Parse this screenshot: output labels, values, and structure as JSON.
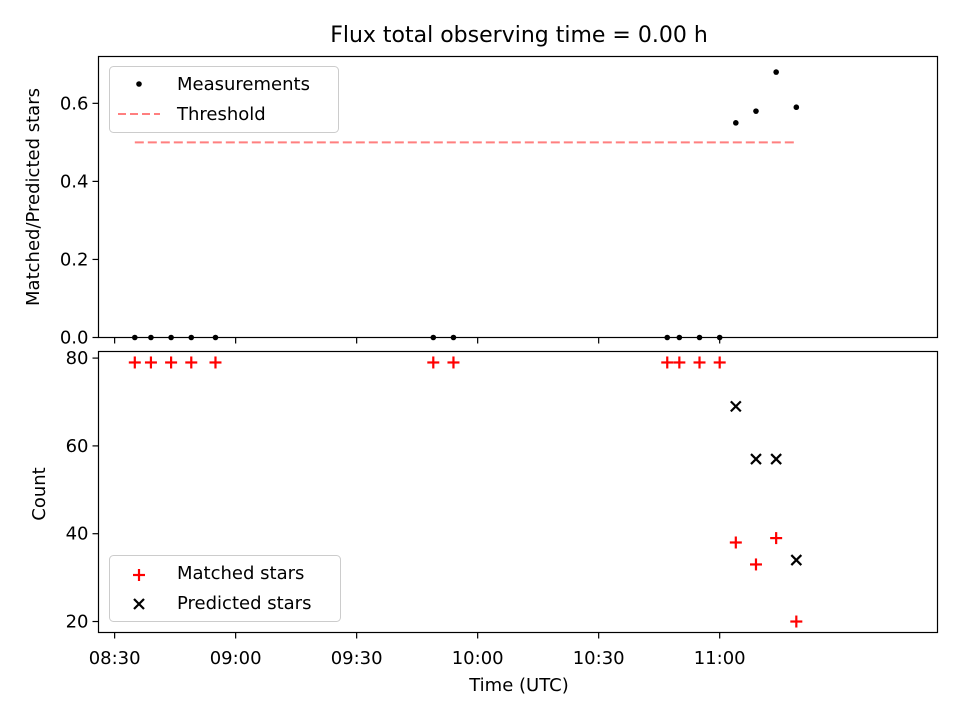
{
  "figure": {
    "title": "Flux total observing time = 0.00 h",
    "xlabel": "Time (UTC)",
    "x_ticks": [
      "08:30",
      "09:00",
      "09:30",
      "10:00",
      "10:30",
      "11:00"
    ]
  },
  "chart_data": [
    {
      "type": "scatter",
      "ylabel": "Matched/Predicted stars",
      "xlim": [
        "08:26",
        "11:54"
      ],
      "ylim": [
        0,
        0.72
      ],
      "y_ticks": [
        "0.0",
        "0.2",
        "0.4",
        "0.6"
      ],
      "legend_position": "upper left",
      "series": [
        {
          "name": "Measurements",
          "kind": "points",
          "color": "#000000",
          "x": [
            "08:35",
            "08:39",
            "08:44",
            "08:49",
            "08:55",
            "09:49",
            "09:54",
            "10:47",
            "10:50",
            "10:55",
            "11:00",
            "11:04",
            "11:09",
            "11:14",
            "11:19"
          ],
          "y": [
            0,
            0,
            0,
            0,
            0,
            0,
            0,
            0,
            0,
            0,
            0,
            0.55,
            0.58,
            0.68,
            0.59
          ]
        },
        {
          "name": "Threshold",
          "kind": "dashed-line",
          "color": "#ff7f7f",
          "x": [
            "08:35",
            "11:19"
          ],
          "y": [
            0.5,
            0.5
          ]
        }
      ]
    },
    {
      "type": "scatter",
      "ylabel": "Count",
      "xlim": [
        "08:26",
        "11:54"
      ],
      "ylim": [
        17.5,
        81.5
      ],
      "y_ticks": [
        "20",
        "40",
        "60",
        "80"
      ],
      "legend_position": "lower left",
      "series": [
        {
          "name": "Matched stars",
          "marker": "plus",
          "color": "#ff0000",
          "x": [
            "08:35",
            "08:39",
            "08:44",
            "08:49",
            "08:55",
            "09:49",
            "09:54",
            "10:47",
            "10:50",
            "10:55",
            "11:00",
            "11:04",
            "11:09",
            "11:14",
            "11:19"
          ],
          "y": [
            79,
            79,
            79,
            79,
            79,
            79,
            79,
            79,
            79,
            79,
            79,
            38,
            33,
            39,
            20
          ]
        },
        {
          "name": "Predicted stars",
          "marker": "x",
          "color": "#000000",
          "x": [
            "11:04",
            "11:09",
            "11:14",
            "11:19"
          ],
          "y": [
            69,
            57,
            57,
            34
          ]
        }
      ]
    }
  ]
}
